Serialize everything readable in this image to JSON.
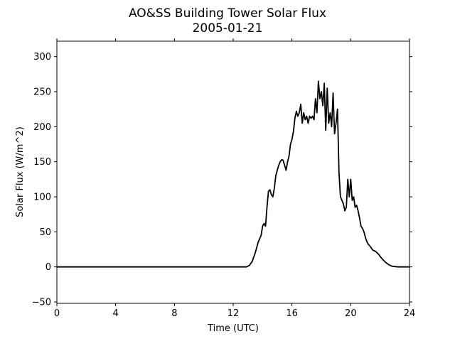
{
  "chart_data": {
    "type": "line",
    "title": "AO&SS Building Tower Solar Flux",
    "subtitle": "2005-01-21",
    "xlabel": "Time (UTC)",
    "ylabel": "Solar Flux (W/m^2)",
    "xlim": [
      0,
      24
    ],
    "ylim": [
      -52,
      322
    ],
    "x_ticks": [
      "0",
      "4",
      "8",
      "12",
      "16",
      "20",
      "24"
    ],
    "y_ticks": [
      "−50",
      "0",
      "50",
      "100",
      "150",
      "200",
      "250",
      "300"
    ],
    "x_tick_values": [
      0,
      4,
      8,
      12,
      16,
      20,
      24
    ],
    "y_tick_values": [
      -50,
      0,
      50,
      100,
      150,
      200,
      250,
      300
    ],
    "grid": false,
    "line_color": "#000000",
    "series": [
      {
        "x": [
          0,
          4,
          8,
          12,
          12.9,
          13.1,
          13.3,
          13.5,
          13.7,
          13.9,
          14.0,
          14.1,
          14.2,
          14.3,
          14.4,
          14.5,
          14.6,
          14.7,
          14.8,
          14.9,
          15.0,
          15.1,
          15.2,
          15.3,
          15.4,
          15.5,
          15.6,
          15.7,
          15.8,
          15.9,
          16.0,
          16.1,
          16.2,
          16.3,
          16.4,
          16.5,
          16.6,
          16.7,
          16.8,
          16.9,
          17.0,
          17.1,
          17.2,
          17.3,
          17.4,
          17.5,
          17.6,
          17.7,
          17.8,
          17.9,
          18.0,
          18.1,
          18.2,
          18.3,
          18.4,
          18.5,
          18.6,
          18.7,
          18.8,
          18.9,
          19.0,
          19.1,
          19.2,
          19.3,
          19.4,
          19.5,
          19.6,
          19.7,
          19.8,
          19.9,
          20.0,
          20.1,
          20.2,
          20.3,
          20.4,
          20.5,
          20.6,
          20.7,
          20.8,
          20.9,
          21.0,
          21.1,
          21.2,
          21.3,
          21.4,
          21.5,
          21.6,
          21.7,
          21.8,
          21.9,
          22.0,
          22.2,
          22.4,
          22.6,
          22.8,
          23.0,
          23.2,
          23.4,
          23.6,
          23.8,
          24.0
        ],
        "y": [
          0,
          0,
          0,
          0,
          0,
          2,
          8,
          20,
          35,
          45,
          58,
          62,
          58,
          85,
          108,
          110,
          103,
          100,
          112,
          130,
          138,
          145,
          150,
          153,
          152,
          145,
          138,
          150,
          158,
          175,
          182,
          193,
          212,
          222,
          215,
          220,
          232,
          205,
          220,
          210,
          215,
          205,
          215,
          212,
          215,
          210,
          240,
          220,
          265,
          240,
          250,
          230,
          262,
          195,
          255,
          205,
          220,
          200,
          248,
          190,
          205,
          225,
          135,
          100,
          95,
          90,
          80,
          85,
          125,
          100,
          125,
          95,
          100,
          85,
          88,
          80,
          70,
          58,
          55,
          50,
          42,
          36,
          32,
          30,
          27,
          24,
          23,
          22,
          20,
          18,
          15,
          10,
          6,
          3,
          1,
          0.5,
          0,
          0,
          0,
          0,
          0
        ]
      }
    ]
  }
}
